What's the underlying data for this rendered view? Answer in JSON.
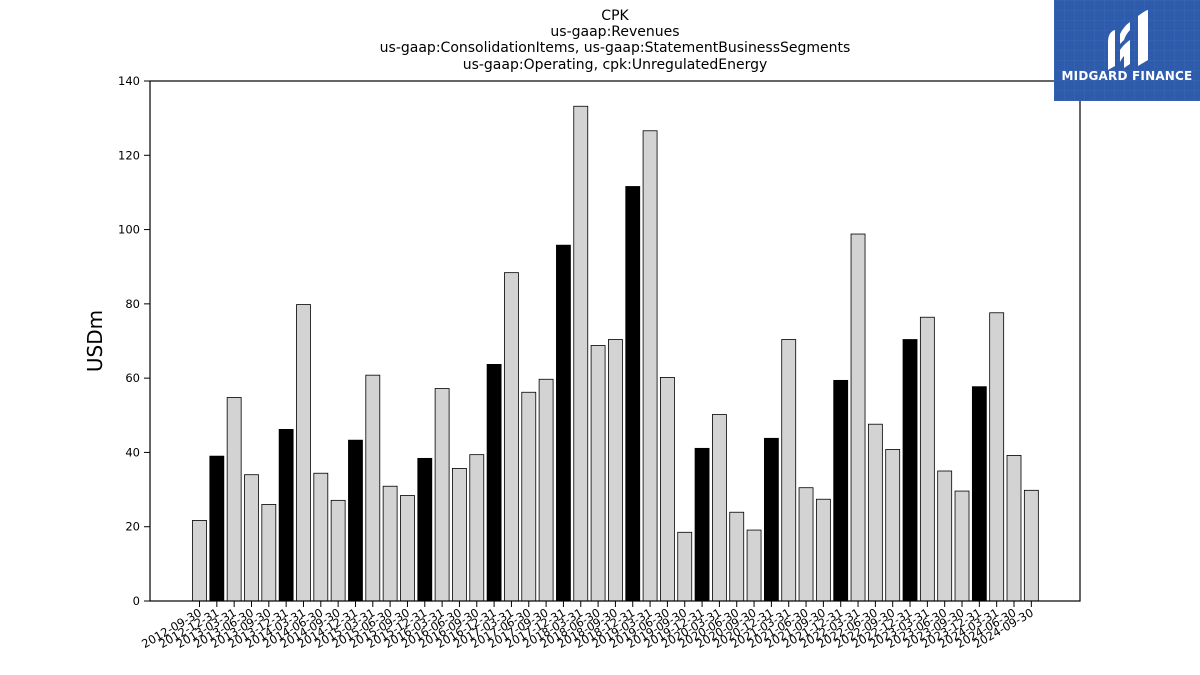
{
  "chart_data": {
    "type": "bar",
    "title_lines": [
      "CPK",
      "us-gaap:Revenues",
      "us-gaap:ConsolidationItems, us-gaap:StatementBusinessSegments",
      "us-gaap:Operating, cpk:UnregulatedEnergy"
    ],
    "xlabel": "",
    "ylabel": "USDm",
    "ylim": [
      0,
      140
    ],
    "yticks": [
      0,
      20,
      40,
      60,
      80,
      100,
      120,
      140
    ],
    "grid": false,
    "colors": {
      "default": "#d3d3d3",
      "highlight": "#000000",
      "edge": "#000000"
    },
    "categories": [
      "2012-09-30",
      "2012-12-31",
      "2013-03-31",
      "2013-06-30",
      "2013-09-30",
      "2013-12-31",
      "2014-03-31",
      "2014-06-30",
      "2014-09-30",
      "2014-12-31",
      "2015-03-31",
      "2015-06-30",
      "2015-09-30",
      "2015-12-31",
      "2016-03-31",
      "2016-06-30",
      "2016-09-30",
      "2016-12-31",
      "2017-03-31",
      "2017-06-30",
      "2017-09-30",
      "2017-12-31",
      "2018-03-31",
      "2018-06-30",
      "2018-09-30",
      "2018-12-31",
      "2019-03-31",
      "2019-06-30",
      "2019-09-30",
      "2019-12-31",
      "2020-03-31",
      "2020-06-30",
      "2020-09-30",
      "2020-12-31",
      "2021-03-31",
      "2021-06-30",
      "2021-09-30",
      "2021-12-31",
      "2022-03-31",
      "2022-06-30",
      "2022-09-30",
      "2022-12-31",
      "2023-03-31",
      "2023-06-30",
      "2023-09-30",
      "2023-12-31",
      "2024-03-31",
      "2024-06-30",
      "2024-09-30"
    ],
    "values": [
      21.7,
      39.0,
      54.8,
      34.0,
      26.0,
      46.2,
      79.8,
      34.4,
      27.1,
      43.3,
      60.8,
      30.9,
      28.4,
      38.4,
      57.2,
      35.7,
      39.4,
      63.7,
      88.4,
      56.2,
      59.7,
      95.8,
      133.2,
      68.8,
      70.4,
      111.6,
      126.6,
      60.2,
      18.5,
      41.1,
      50.2,
      23.9,
      19.1,
      43.8,
      70.4,
      30.5,
      27.4,
      59.4,
      98.8,
      47.6,
      40.8,
      70.4,
      76.4,
      35.0,
      29.6,
      57.7,
      77.6,
      39.2,
      29.8
    ],
    "highlight": [
      false,
      true,
      false,
      false,
      false,
      true,
      false,
      false,
      false,
      true,
      false,
      false,
      false,
      true,
      false,
      false,
      false,
      true,
      false,
      false,
      false,
      true,
      false,
      false,
      false,
      true,
      false,
      false,
      false,
      true,
      false,
      false,
      false,
      true,
      false,
      false,
      false,
      true,
      false,
      false,
      false,
      true,
      false,
      false,
      false,
      true,
      false,
      false,
      false
    ]
  },
  "logo": {
    "text": "MIDGARD FINANCE",
    "background": "#2e5bab",
    "icon": "midgard-logo-icon"
  }
}
